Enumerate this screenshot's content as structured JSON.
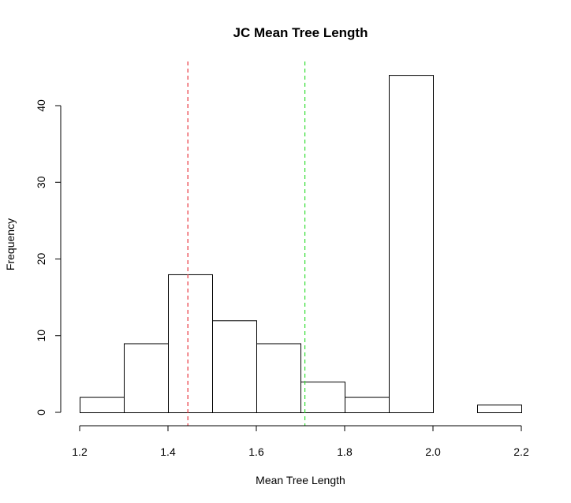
{
  "chart_data": {
    "type": "bar",
    "title": "JC Mean Tree Length",
    "xlabel": "Mean Tree Length",
    "ylabel": "Frequency",
    "bins": [
      {
        "x0": 1.2,
        "x1": 1.3,
        "count": 2
      },
      {
        "x0": 1.3,
        "x1": 1.4,
        "count": 9
      },
      {
        "x0": 1.4,
        "x1": 1.5,
        "count": 18
      },
      {
        "x0": 1.5,
        "x1": 1.6,
        "count": 12
      },
      {
        "x0": 1.6,
        "x1": 1.7,
        "count": 9
      },
      {
        "x0": 1.7,
        "x1": 1.8,
        "count": 4
      },
      {
        "x0": 1.8,
        "x1": 1.9,
        "count": 2
      },
      {
        "x0": 1.9,
        "x1": 2.0,
        "count": 44
      },
      {
        "x0": 2.0,
        "x1": 2.1,
        "count": 0
      },
      {
        "x0": 2.1,
        "x1": 2.2,
        "count": 1
      }
    ],
    "xticks": [
      "1.2",
      "1.4",
      "1.6",
      "1.8",
      "2.0",
      "2.2"
    ],
    "yticks": [
      "0",
      "10",
      "20",
      "30",
      "40"
    ],
    "xlim": [
      1.2,
      2.2
    ],
    "ylim": [
      0,
      40
    ],
    "vlines": [
      {
        "x": 1.445,
        "color": "#e8323a",
        "style": "dashed"
      },
      {
        "x": 1.71,
        "color": "#33dd33",
        "style": "dashed"
      }
    ],
    "grid": false
  }
}
